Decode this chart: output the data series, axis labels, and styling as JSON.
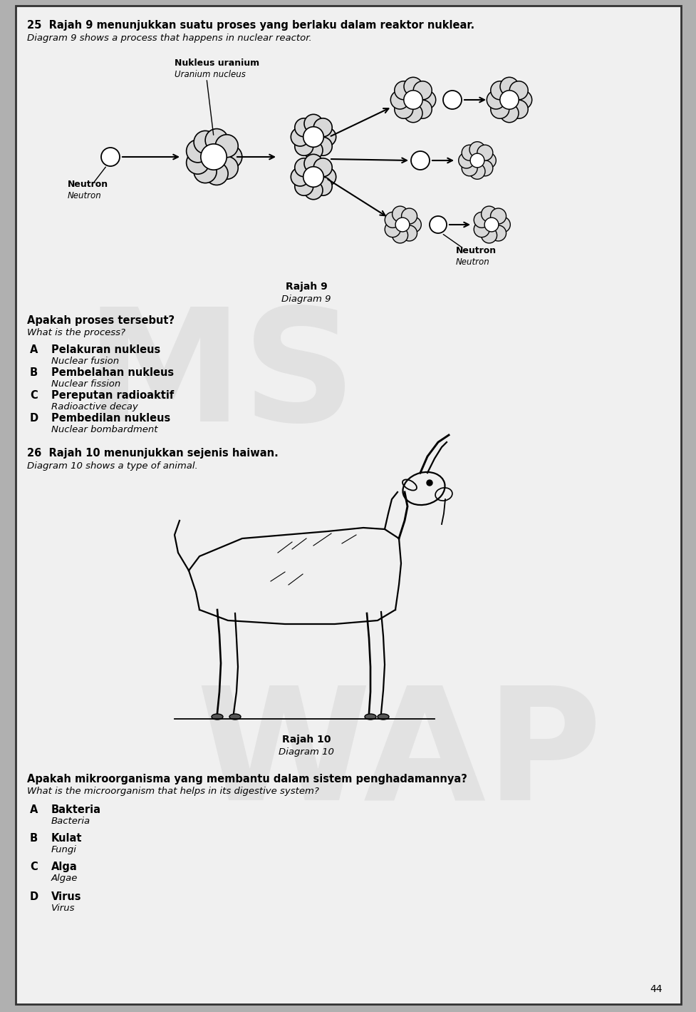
{
  "bg_color": "#b0b0b0",
  "page_color": "#f0f0f0",
  "q25_header_bold": "25  Rajah 9 menunjukkan suatu proses yang berlaku dalam reaktor nuklear.",
  "q25_header_italic": "Diagram 9 shows a process that happens in nuclear reactor.",
  "label_uranium_bold": "Nukleus uranium",
  "label_uranium_italic": "Uranium nucleus",
  "label_neutron_left_bold": "Neutron",
  "label_neutron_left_italic": "Neutron",
  "label_neutron_right_bold": "Neutron",
  "label_neutron_right_italic": "Neutron",
  "diagram9_label_bold": "Rajah 9",
  "diagram9_label_italic": "Diagram 9",
  "q25_question_bold": "Apakah proses tersebut?",
  "q25_question_italic": "What is the process?",
  "q25_options": [
    [
      "A",
      "Pelakuran nukleus",
      "Nuclear fusion"
    ],
    [
      "B",
      "Pembelahan nukleus",
      "Nuclear fission"
    ],
    [
      "C",
      "Pereputan radioaktif",
      "Radioactive decay"
    ],
    [
      "D",
      "Pembedilan nukleus",
      "Nuclear bombardment"
    ]
  ],
  "q26_header_bold": "26  Rajah 10 menunjukkan sejenis haiwan.",
  "q26_header_italic": "Diagram 10 shows a type of animal.",
  "diagram10_label_bold": "Rajah 10",
  "diagram10_label_italic": "Diagram 10",
  "q26_question_bold": "Apakah mikroorganisma yang membantu dalam sistem penghadamannya?",
  "q26_question_italic": "What is the microorganism that helps in its digestive system?",
  "q26_options": [
    [
      "A",
      "Bakteria",
      "Bacteria"
    ],
    [
      "B",
      "Kulat",
      "Fungi"
    ],
    [
      "C",
      "Alga",
      "Algae"
    ],
    [
      "D",
      "Virus",
      "Virus"
    ]
  ],
  "page_number": "44",
  "watermark_ms": "MS",
  "watermark_wap": "WAP"
}
